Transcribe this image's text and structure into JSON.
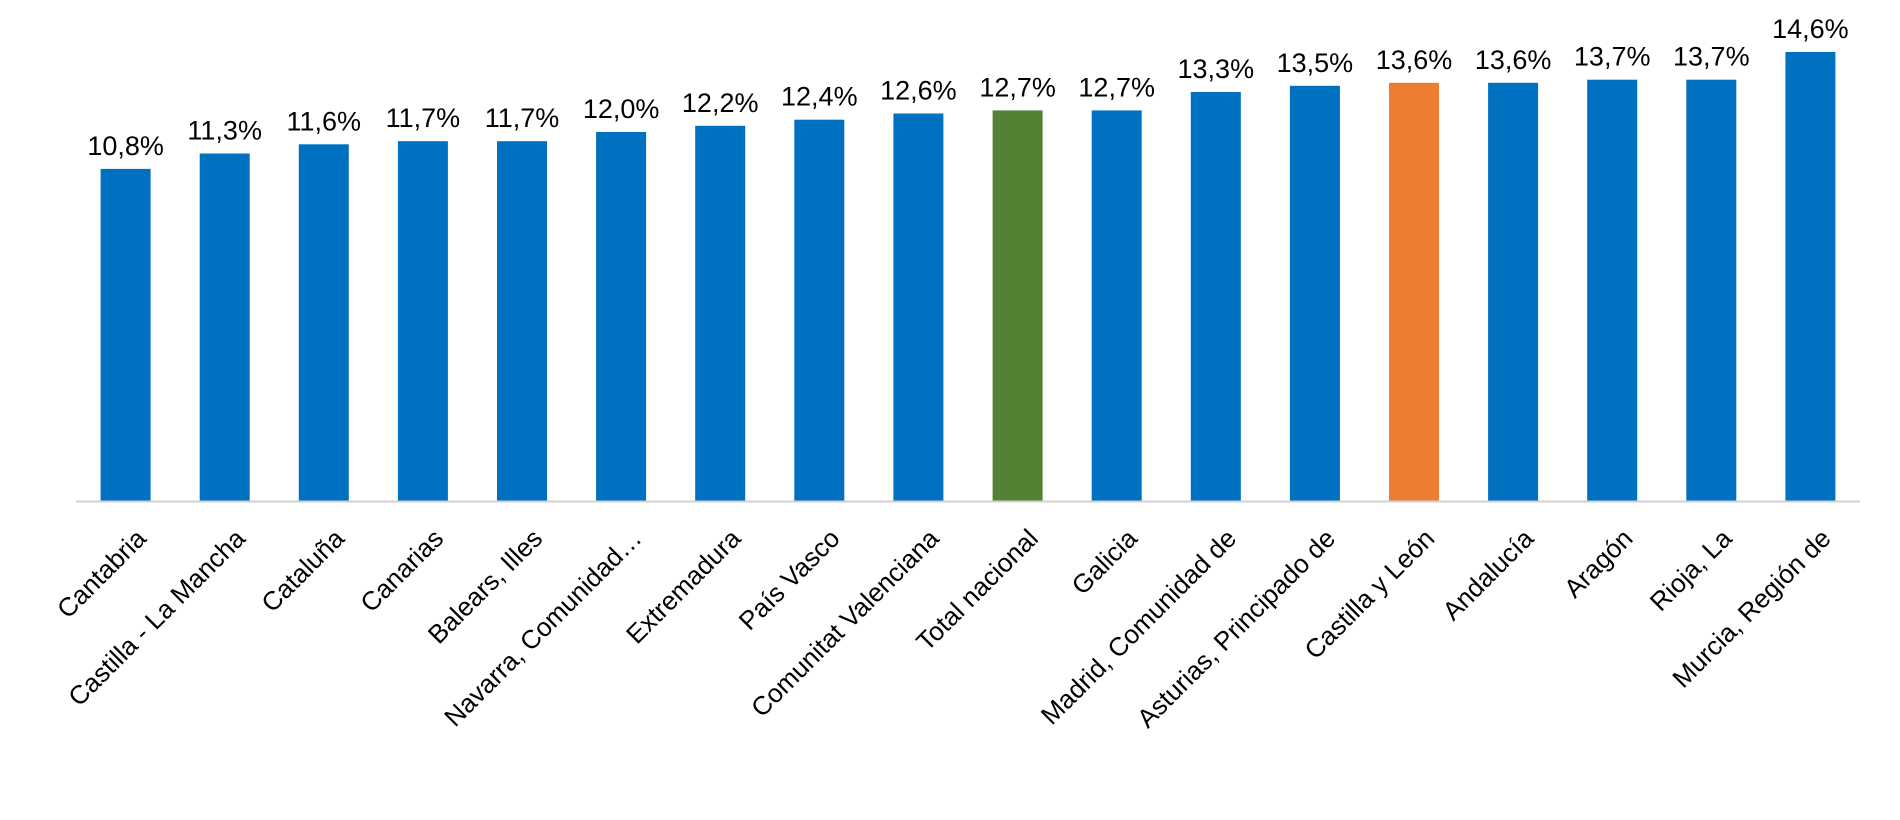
{
  "chart_data": {
    "type": "bar",
    "title": "",
    "xlabel": "",
    "ylabel": "",
    "ylim": [
      0,
      15
    ],
    "grid": false,
    "legend": "none",
    "value_format": "{v}%",
    "decimal_separator": ",",
    "default_color": "#0070C0",
    "categories": [
      "Cantabria",
      "Castilla - La Mancha",
      "Cataluña",
      "Canarias",
      "Balears, Illes",
      "Navarra, Comunidad…",
      "Extremadura",
      "País Vasco",
      "Comunitat Valenciana",
      "Total nacional",
      "Galicia",
      "Madrid, Comunidad de",
      "Asturias, Principado de",
      "Castilla y León",
      "Andalucía",
      "Aragón",
      "Rioja, La",
      "Murcia, Región de"
    ],
    "values": [
      10.8,
      11.3,
      11.6,
      11.7,
      11.7,
      12.0,
      12.2,
      12.4,
      12.6,
      12.7,
      12.7,
      13.3,
      13.5,
      13.6,
      13.6,
      13.7,
      13.7,
      14.6
    ],
    "colors": [
      "#0070C0",
      "#0070C0",
      "#0070C0",
      "#0070C0",
      "#0070C0",
      "#0070C0",
      "#0070C0",
      "#0070C0",
      "#0070C0",
      "#548235",
      "#0070C0",
      "#0070C0",
      "#0070C0",
      "#ED7D31",
      "#0070C0",
      "#0070C0",
      "#0070C0",
      "#0070C0"
    ]
  }
}
